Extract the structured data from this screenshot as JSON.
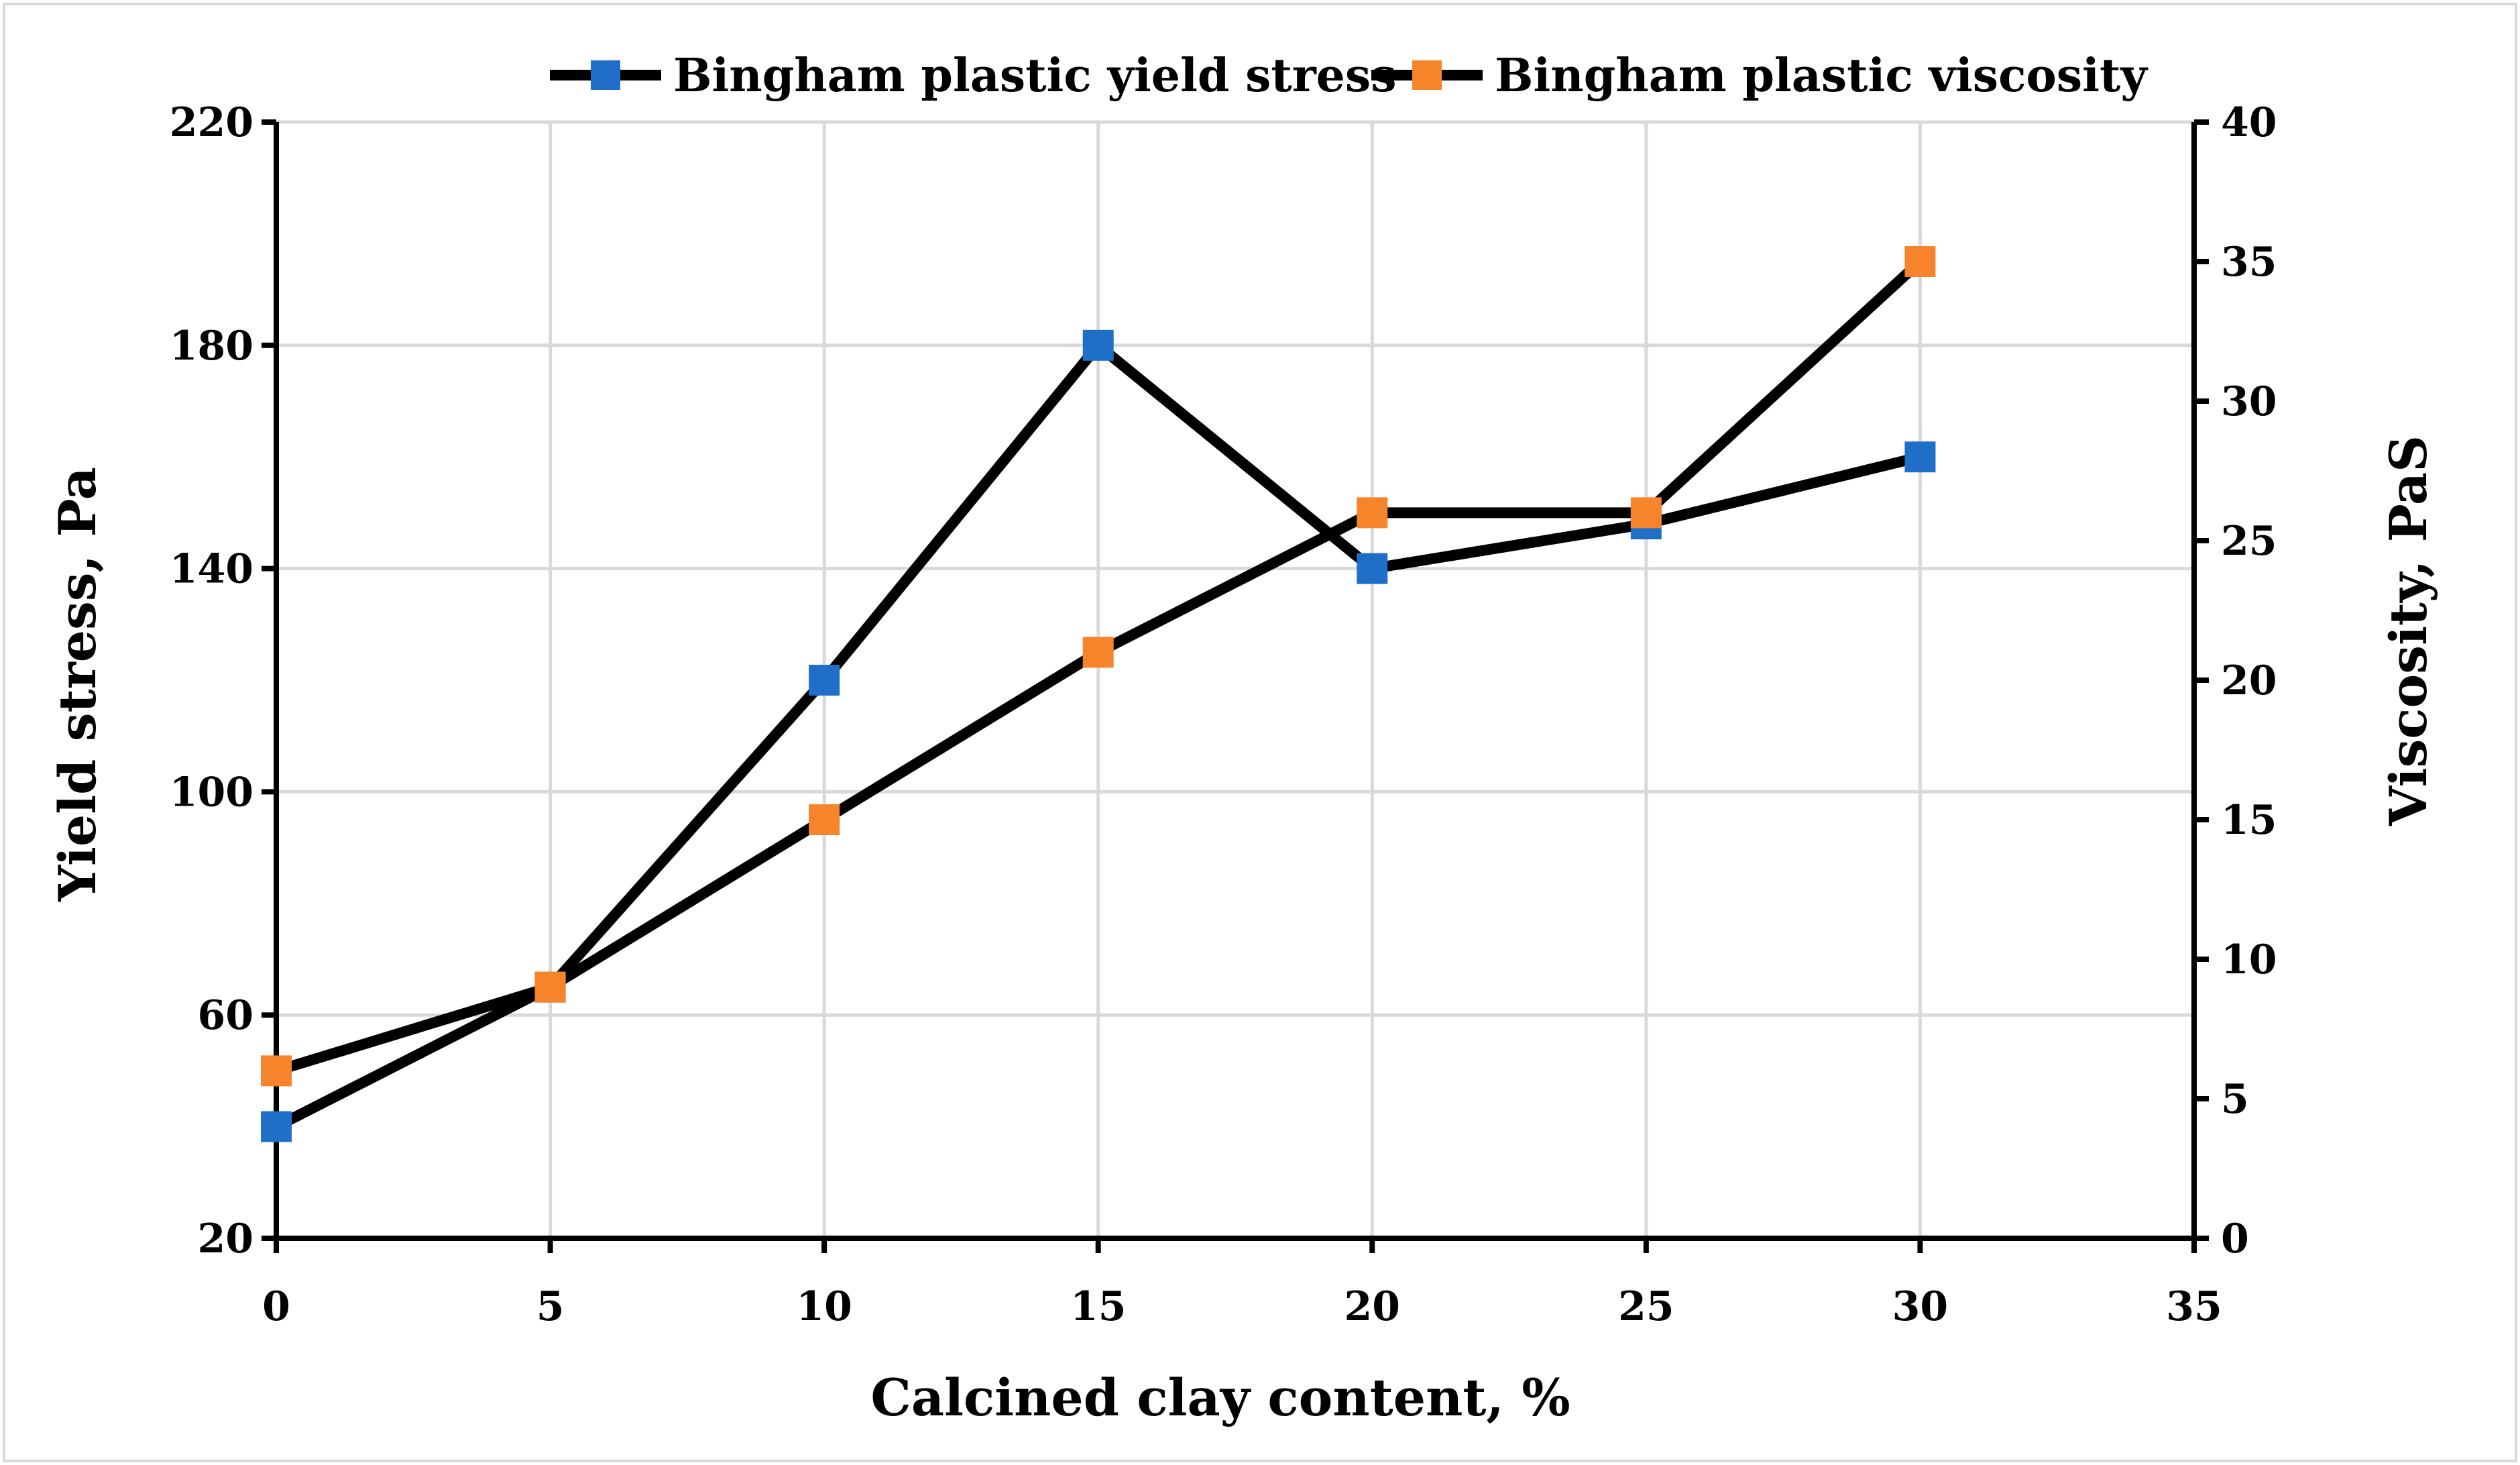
{
  "chart_data": {
    "type": "line",
    "title": "",
    "xlabel": "Calcined clay content, %",
    "ylabel": "Yield stress, Pa",
    "y2label": "Viscosity, PaS",
    "xlim": [
      0,
      35
    ],
    "ylim": [
      20,
      220
    ],
    "y2lim": [
      0,
      40
    ],
    "x_ticks": [
      0,
      5,
      10,
      15,
      20,
      25,
      30,
      35
    ],
    "y_ticks": [
      20,
      60,
      100,
      140,
      180,
      220
    ],
    "y2_ticks": [
      0,
      5,
      10,
      15,
      20,
      25,
      30,
      35,
      40
    ],
    "grid": true,
    "legend_position": "top",
    "series": [
      {
        "name": "Bingham plastic yield stress",
        "axis": "left",
        "color": "#1f6fc9",
        "x": [
          0,
          5,
          10,
          15,
          20,
          25,
          30
        ],
        "values": [
          40,
          65,
          120,
          180,
          140,
          148,
          160
        ]
      },
      {
        "name": "Bingham plastic viscosity",
        "axis": "right",
        "color": "#f5842b",
        "x": [
          0,
          5,
          10,
          15,
          20,
          25,
          30
        ],
        "values": [
          6,
          9,
          15,
          21,
          26,
          26,
          35
        ]
      }
    ]
  }
}
